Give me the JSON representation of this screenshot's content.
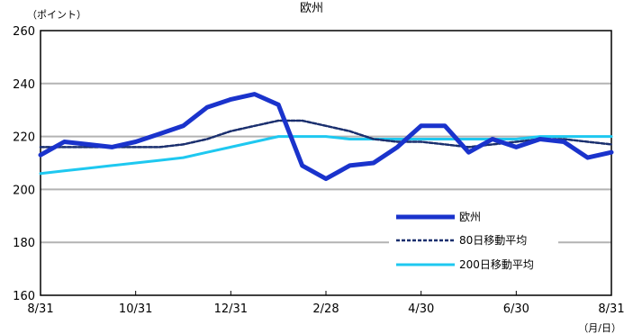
{
  "chart_data": {
    "type": "line",
    "title": "欧州",
    "y_unit_label": "（ポイント）",
    "x_unit_label": "（月/日）",
    "ylim": [
      160,
      260
    ],
    "y_ticks": [
      160,
      180,
      200,
      220,
      240,
      260
    ],
    "x_tick_labels": [
      "8/31",
      "10/31",
      "12/31",
      "2/28",
      "4/30",
      "6/30",
      "8/31"
    ],
    "grid": true,
    "legend_position": "bottom-right",
    "x": [
      "8/31",
      "9/15",
      "9/30",
      "10/15",
      "10/31",
      "11/15",
      "11/30",
      "12/15",
      "12/31",
      "1/15",
      "1/31",
      "2/15",
      "2/28",
      "3/15",
      "3/31",
      "4/15",
      "4/30",
      "5/15",
      "5/31",
      "6/15",
      "6/30",
      "7/15",
      "7/31",
      "8/15",
      "8/31"
    ],
    "series": [
      {
        "name": "欧州",
        "color": "#1a33cc",
        "style": "solid-thick",
        "values": [
          213,
          218,
          217,
          216,
          218,
          221,
          224,
          231,
          234,
          236,
          232,
          209,
          204,
          209,
          210,
          216,
          224,
          224,
          214,
          219,
          216,
          219,
          218,
          212,
          214
        ]
      },
      {
        "name": "80日移動平均",
        "color": "#1a2f6e",
        "style": "dashed",
        "values": [
          216,
          216,
          216,
          216,
          216,
          216,
          217,
          219,
          222,
          224,
          226,
          226,
          224,
          222,
          219,
          218,
          218,
          217,
          216,
          217,
          218,
          219,
          219,
          218,
          217
        ]
      },
      {
        "name": "200日移動平均",
        "color": "#1ec8f0",
        "style": "solid",
        "values": [
          206,
          207,
          208,
          209,
          210,
          211,
          212,
          214,
          216,
          218,
          220,
          220,
          220,
          219,
          219,
          219,
          219,
          219,
          219,
          219,
          219,
          220,
          220,
          220,
          220
        ]
      }
    ]
  }
}
